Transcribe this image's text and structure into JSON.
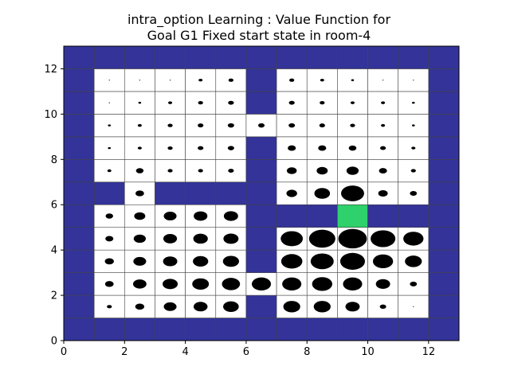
{
  "chart_data": {
    "type": "heatmap",
    "title_lines": [
      "intra_option Learning : Value Function for",
      "Goal G1 Fixed start state in room-4"
    ],
    "xlabel": "",
    "ylabel": "",
    "xlim": [
      0,
      13
    ],
    "ylim": [
      0,
      13
    ],
    "x_ticks": [
      0,
      2,
      4,
      6,
      8,
      10,
      12
    ],
    "y_ticks": [
      0,
      2,
      4,
      6,
      8,
      10,
      12
    ],
    "grid": true,
    "grid_size": [
      13,
      13
    ],
    "colors": {
      "wall": "#333399",
      "goal": "#2ed16b",
      "open": "#ffffff",
      "marker": "#000000",
      "grid_line": "#444444"
    },
    "walls": [
      [
        0,
        0
      ],
      [
        1,
        0
      ],
      [
        2,
        0
      ],
      [
        3,
        0
      ],
      [
        4,
        0
      ],
      [
        5,
        0
      ],
      [
        6,
        0
      ],
      [
        7,
        0
      ],
      [
        8,
        0
      ],
      [
        9,
        0
      ],
      [
        10,
        0
      ],
      [
        11,
        0
      ],
      [
        12,
        0
      ],
      [
        0,
        12
      ],
      [
        1,
        12
      ],
      [
        2,
        12
      ],
      [
        3,
        12
      ],
      [
        4,
        12
      ],
      [
        5,
        12
      ],
      [
        6,
        12
      ],
      [
        7,
        12
      ],
      [
        8,
        12
      ],
      [
        9,
        12
      ],
      [
        10,
        12
      ],
      [
        11,
        12
      ],
      [
        12,
        12
      ],
      [
        0,
        1
      ],
      [
        0,
        2
      ],
      [
        0,
        3
      ],
      [
        0,
        4
      ],
      [
        0,
        5
      ],
      [
        0,
        6
      ],
      [
        0,
        7
      ],
      [
        0,
        8
      ],
      [
        0,
        9
      ],
      [
        0,
        10
      ],
      [
        0,
        11
      ],
      [
        12,
        1
      ],
      [
        12,
        2
      ],
      [
        12,
        3
      ],
      [
        12,
        4
      ],
      [
        12,
        5
      ],
      [
        12,
        6
      ],
      [
        12,
        7
      ],
      [
        12,
        8
      ],
      [
        12,
        9
      ],
      [
        12,
        10
      ],
      [
        12,
        11
      ],
      [
        6,
        1
      ],
      [
        6,
        3
      ],
      [
        6,
        4
      ],
      [
        6,
        5
      ],
      [
        6,
        6
      ],
      [
        6,
        7
      ],
      [
        6,
        8
      ],
      [
        6,
        10
      ],
      [
        6,
        11
      ],
      [
        1,
        6
      ],
      [
        3,
        6
      ],
      [
        4,
        6
      ],
      [
        5,
        6
      ],
      [
        7,
        5
      ],
      [
        8,
        5
      ],
      [
        10,
        5
      ],
      [
        11,
        5
      ]
    ],
    "goal": [
      9,
      5
    ],
    "values": [
      {
        "x": 1,
        "y": 11,
        "v": 0
      },
      {
        "x": 2,
        "y": 11,
        "v": 0
      },
      {
        "x": 3,
        "y": 11,
        "v": 0
      },
      {
        "x": 4,
        "y": 11,
        "v": 0.02
      },
      {
        "x": 5,
        "y": 11,
        "v": 0.03
      },
      {
        "x": 1,
        "y": 10,
        "v": 0
      },
      {
        "x": 2,
        "y": 10,
        "v": 0.01
      },
      {
        "x": 3,
        "y": 10,
        "v": 0.02
      },
      {
        "x": 4,
        "y": 10,
        "v": 0.03
      },
      {
        "x": 5,
        "y": 10,
        "v": 0.04
      },
      {
        "x": 1,
        "y": 9,
        "v": 0.01
      },
      {
        "x": 2,
        "y": 9,
        "v": 0.02
      },
      {
        "x": 3,
        "y": 9,
        "v": 0.03
      },
      {
        "x": 4,
        "y": 9,
        "v": 0.04
      },
      {
        "x": 5,
        "y": 9,
        "v": 0.05
      },
      {
        "x": 1,
        "y": 8,
        "v": 0.01
      },
      {
        "x": 2,
        "y": 8,
        "v": 0.02
      },
      {
        "x": 3,
        "y": 8,
        "v": 0.03
      },
      {
        "x": 4,
        "y": 8,
        "v": 0.04
      },
      {
        "x": 5,
        "y": 8,
        "v": 0.05
      },
      {
        "x": 1,
        "y": 7,
        "v": 0.02
      },
      {
        "x": 2,
        "y": 7,
        "v": 0.07
      },
      {
        "x": 3,
        "y": 7,
        "v": 0.03
      },
      {
        "x": 4,
        "y": 7,
        "v": 0.03
      },
      {
        "x": 5,
        "y": 7,
        "v": 0.04
      },
      {
        "x": 2,
        "y": 6,
        "v": 0.09
      },
      {
        "x": 6,
        "y": 9,
        "v": 0.05
      },
      {
        "x": 7,
        "y": 11,
        "v": 0.03
      },
      {
        "x": 8,
        "y": 11,
        "v": 0.02
      },
      {
        "x": 9,
        "y": 11,
        "v": 0.01
      },
      {
        "x": 10,
        "y": 11,
        "v": 0
      },
      {
        "x": 11,
        "y": 11,
        "v": 0
      },
      {
        "x": 7,
        "y": 10,
        "v": 0.04
      },
      {
        "x": 8,
        "y": 10,
        "v": 0.03
      },
      {
        "x": 9,
        "y": 10,
        "v": 0.02
      },
      {
        "x": 10,
        "y": 10,
        "v": 0.02
      },
      {
        "x": 11,
        "y": 10,
        "v": 0.01
      },
      {
        "x": 7,
        "y": 9,
        "v": 0.05
      },
      {
        "x": 8,
        "y": 9,
        "v": 0.04
      },
      {
        "x": 9,
        "y": 9,
        "v": 0.03
      },
      {
        "x": 10,
        "y": 9,
        "v": 0.02
      },
      {
        "x": 11,
        "y": 9,
        "v": 0.01
      },
      {
        "x": 7,
        "y": 8,
        "v": 0.08
      },
      {
        "x": 8,
        "y": 8,
        "v": 0.08
      },
      {
        "x": 9,
        "y": 8,
        "v": 0.07
      },
      {
        "x": 10,
        "y": 8,
        "v": 0.04
      },
      {
        "x": 11,
        "y": 8,
        "v": 0.02
      },
      {
        "x": 7,
        "y": 7,
        "v": 0.12
      },
      {
        "x": 8,
        "y": 7,
        "v": 0.15
      },
      {
        "x": 9,
        "y": 7,
        "v": 0.18
      },
      {
        "x": 10,
        "y": 7,
        "v": 0.08
      },
      {
        "x": 11,
        "y": 7,
        "v": 0.03
      },
      {
        "x": 7,
        "y": 6,
        "v": 0.14
      },
      {
        "x": 8,
        "y": 6,
        "v": 0.3
      },
      {
        "x": 9,
        "y": 6,
        "v": 0.65
      },
      {
        "x": 10,
        "y": 6,
        "v": 0.11
      },
      {
        "x": 11,
        "y": 6,
        "v": 0.06
      },
      {
        "x": 1,
        "y": 5,
        "v": 0.07
      },
      {
        "x": 2,
        "y": 5,
        "v": 0.15
      },
      {
        "x": 3,
        "y": 5,
        "v": 0.2
      },
      {
        "x": 4,
        "y": 5,
        "v": 0.23
      },
      {
        "x": 5,
        "y": 5,
        "v": 0.25
      },
      {
        "x": 1,
        "y": 4,
        "v": 0.08
      },
      {
        "x": 2,
        "y": 4,
        "v": 0.18
      },
      {
        "x": 3,
        "y": 4,
        "v": 0.23
      },
      {
        "x": 4,
        "y": 4,
        "v": 0.26
      },
      {
        "x": 5,
        "y": 4,
        "v": 0.28
      },
      {
        "x": 1,
        "y": 3,
        "v": 0.1
      },
      {
        "x": 2,
        "y": 3,
        "v": 0.2
      },
      {
        "x": 3,
        "y": 3,
        "v": 0.25
      },
      {
        "x": 4,
        "y": 3,
        "v": 0.29
      },
      {
        "x": 5,
        "y": 3,
        "v": 0.32
      },
      {
        "x": 1,
        "y": 2,
        "v": 0.09
      },
      {
        "x": 2,
        "y": 2,
        "v": 0.22
      },
      {
        "x": 3,
        "y": 2,
        "v": 0.28
      },
      {
        "x": 4,
        "y": 2,
        "v": 0.34
      },
      {
        "x": 5,
        "y": 2,
        "v": 0.4
      },
      {
        "x": 1,
        "y": 1,
        "v": 0.03
      },
      {
        "x": 2,
        "y": 1,
        "v": 0.1
      },
      {
        "x": 3,
        "y": 1,
        "v": 0.2
      },
      {
        "x": 4,
        "y": 1,
        "v": 0.24
      },
      {
        "x": 5,
        "y": 1,
        "v": 0.3
      },
      {
        "x": 6,
        "y": 2,
        "v": 0.45
      },
      {
        "x": 7,
        "y": 4,
        "v": 0.6
      },
      {
        "x": 8,
        "y": 4,
        "v": 0.85
      },
      {
        "x": 9,
        "y": 4,
        "v": 1.0
      },
      {
        "x": 10,
        "y": 4,
        "v": 0.75
      },
      {
        "x": 11,
        "y": 4,
        "v": 0.5
      },
      {
        "x": 7,
        "y": 3,
        "v": 0.55
      },
      {
        "x": 8,
        "y": 3,
        "v": 0.65
      },
      {
        "x": 9,
        "y": 3,
        "v": 0.75
      },
      {
        "x": 10,
        "y": 3,
        "v": 0.5
      },
      {
        "x": 11,
        "y": 3,
        "v": 0.35
      },
      {
        "x": 7,
        "y": 2,
        "v": 0.45
      },
      {
        "x": 8,
        "y": 2,
        "v": 0.5
      },
      {
        "x": 9,
        "y": 2,
        "v": 0.45
      },
      {
        "x": 10,
        "y": 2,
        "v": 0.25
      },
      {
        "x": 11,
        "y": 2,
        "v": 0.06
      },
      {
        "x": 7,
        "y": 1,
        "v": 0.35
      },
      {
        "x": 8,
        "y": 1,
        "v": 0.35
      },
      {
        "x": 9,
        "y": 1,
        "v": 0.25
      },
      {
        "x": 10,
        "y": 1,
        "v": 0.05
      },
      {
        "x": 11,
        "y": 1,
        "v": 0
      }
    ]
  }
}
